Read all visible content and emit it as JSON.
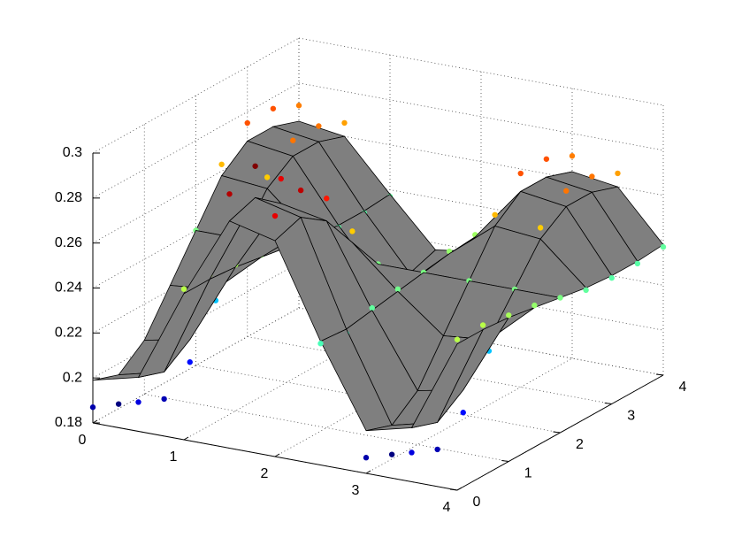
{
  "chart_data": {
    "type": "surface",
    "x": [
      0,
      0.5,
      1,
      1.5,
      2,
      2.5,
      3,
      3.5,
      4
    ],
    "y": [
      0,
      0.5,
      1,
      1.5,
      2,
      2.5,
      3,
      3.5,
      4
    ],
    "z": [
      [
        0.199,
        0.204,
        0.245,
        0.281,
        0.276,
        0.235,
        0.199,
        0.204,
        0.245
      ],
      [
        0.195,
        0.2,
        0.245,
        0.285,
        0.28,
        0.234,
        0.195,
        0.2,
        0.245
      ],
      [
        0.204,
        0.208,
        0.244,
        0.276,
        0.272,
        0.236,
        0.204,
        0.208,
        0.244
      ],
      [
        0.222,
        0.224,
        0.242,
        0.258,
        0.256,
        0.238,
        0.222,
        0.224,
        0.242
      ],
      [
        0.24,
        0.24,
        0.24,
        0.24,
        0.24,
        0.24,
        0.24,
        0.24,
        0.24
      ],
      [
        0.258,
        0.256,
        0.238,
        0.222,
        0.224,
        0.242,
        0.258,
        0.256,
        0.238
      ],
      [
        0.267,
        0.264,
        0.237,
        0.213,
        0.216,
        0.243,
        0.267,
        0.264,
        0.237
      ],
      [
        0.267,
        0.264,
        0.237,
        0.213,
        0.216,
        0.243,
        0.267,
        0.264,
        0.237
      ],
      [
        0.263,
        0.26,
        0.238,
        0.217,
        0.22,
        0.243,
        0.263,
        0.26,
        0.238
      ]
    ],
    "surface_color": "#7f7f7f",
    "edge_color": "#000000",
    "scatter": {
      "colormap": "jet",
      "z": [
        [
          0.187,
          0.193,
          0.247,
          0.293,
          0.287,
          0.234,
          0.187,
          0.193,
          0.247
        ],
        [
          0.182,
          0.188,
          0.247,
          0.299,
          0.292,
          0.232,
          0.182,
          0.188,
          0.247
        ],
        [
          0.193,
          0.198,
          0.245,
          0.287,
          0.282,
          0.237,
          0.193,
          0.198,
          0.245
        ],
        [
          0.217,
          0.219,
          0.243,
          0.263,
          0.261,
          0.239,
          0.217,
          0.219,
          0.243
        ],
        [
          0.24,
          0.24,
          0.24,
          0.24,
          0.24,
          0.24,
          0.24,
          0.24,
          0.24
        ],
        [
          0.263,
          0.261,
          0.237,
          0.217,
          0.219,
          0.243,
          0.263,
          0.261,
          0.237
        ],
        [
          0.275,
          0.271,
          0.236,
          0.205,
          0.209,
          0.244,
          0.275,
          0.271,
          0.236
        ],
        [
          0.275,
          0.271,
          0.236,
          0.205,
          0.209,
          0.244,
          0.275,
          0.271,
          0.236
        ],
        [
          0.27,
          0.266,
          0.237,
          0.21,
          0.214,
          0.244,
          0.27,
          0.266,
          0.237
        ]
      ]
    },
    "xlim": [
      0,
      4
    ],
    "ylim": [
      0,
      4
    ],
    "zlim": [
      0.18,
      0.3
    ],
    "xticks": [
      0,
      1,
      2,
      3,
      4
    ],
    "yticks": [
      0,
      1,
      2,
      3,
      4
    ],
    "zticks": [
      0.18,
      0.2,
      0.22,
      0.24,
      0.26,
      0.28,
      0.3
    ],
    "grid": true
  }
}
